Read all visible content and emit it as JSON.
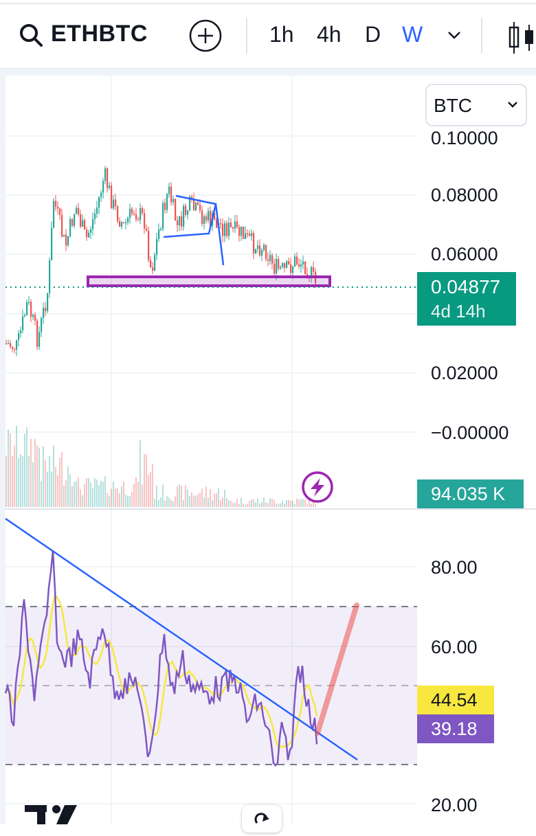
{
  "toolbar": {
    "symbol": "ETHBTC",
    "timeframes": [
      "1h",
      "4h",
      "D",
      "W"
    ],
    "active_timeframe": "W",
    "icons": [
      "search-icon",
      "add-circle-icon",
      "chevron-down-icon",
      "candles-icon"
    ]
  },
  "currency_select": {
    "value": "BTC"
  },
  "price_axis": {
    "ticks": [
      "0.10000",
      "0.08000",
      "0.06000",
      "0.02000",
      "−0.00000"
    ]
  },
  "last_price": {
    "value": "0.04877",
    "countdown": "4d 14h",
    "color": "#089981"
  },
  "volume": {
    "value": "94.035 K",
    "color": "#26a69a"
  },
  "rsi_axis": {
    "ticks": [
      "80.00",
      "60.00",
      "20.00"
    ]
  },
  "rsi": {
    "ma_value": "44.54",
    "value": "39.18",
    "ma_color": "#f7e73e",
    "color": "#7e57c2"
  },
  "colors": {
    "up": "#26a69a",
    "down": "#ef5350",
    "accent": "#2962ff",
    "zone": "#9c27b0"
  }
}
